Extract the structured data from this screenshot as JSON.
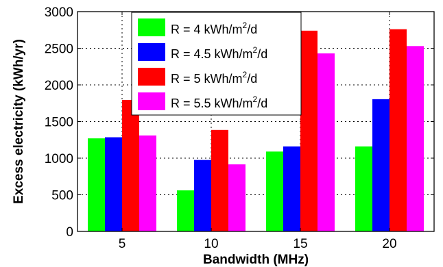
{
  "chart_data": {
    "type": "bar",
    "xlabel": "Bandwidth (MHz)",
    "ylabel": "Excess electricity (kWh/yr)",
    "ylim": [
      0,
      3000
    ],
    "yticks": [
      0,
      500,
      1000,
      1500,
      2000,
      2500,
      3000
    ],
    "categories": [
      "5",
      "10",
      "15",
      "20"
    ],
    "grid": "dashed, on",
    "legend_position": "top-left",
    "series": [
      {
        "name_prefix": "R = 4 kWh/m",
        "name_suffix": "/d",
        "name_sup": "2",
        "color": "#00ff00",
        "values": [
          1270,
          560,
          1090,
          1160
        ]
      },
      {
        "name_prefix": "R = 4.5 kWh/m",
        "name_suffix": "/d",
        "name_sup": "2",
        "color": "#0000ff",
        "values": [
          1285,
          975,
          1160,
          1805
        ]
      },
      {
        "name_prefix": "R = 5 kWh/m",
        "name_suffix": "/d",
        "name_sup": "2",
        "color": "#ff0000",
        "values": [
          1795,
          1385,
          2740,
          2760
        ]
      },
      {
        "name_prefix": "R = 5.5 kWh/m",
        "name_suffix": "/d",
        "name_sup": "2",
        "color": "#ff00ff",
        "values": [
          1310,
          915,
          2430,
          2530
        ]
      }
    ]
  }
}
